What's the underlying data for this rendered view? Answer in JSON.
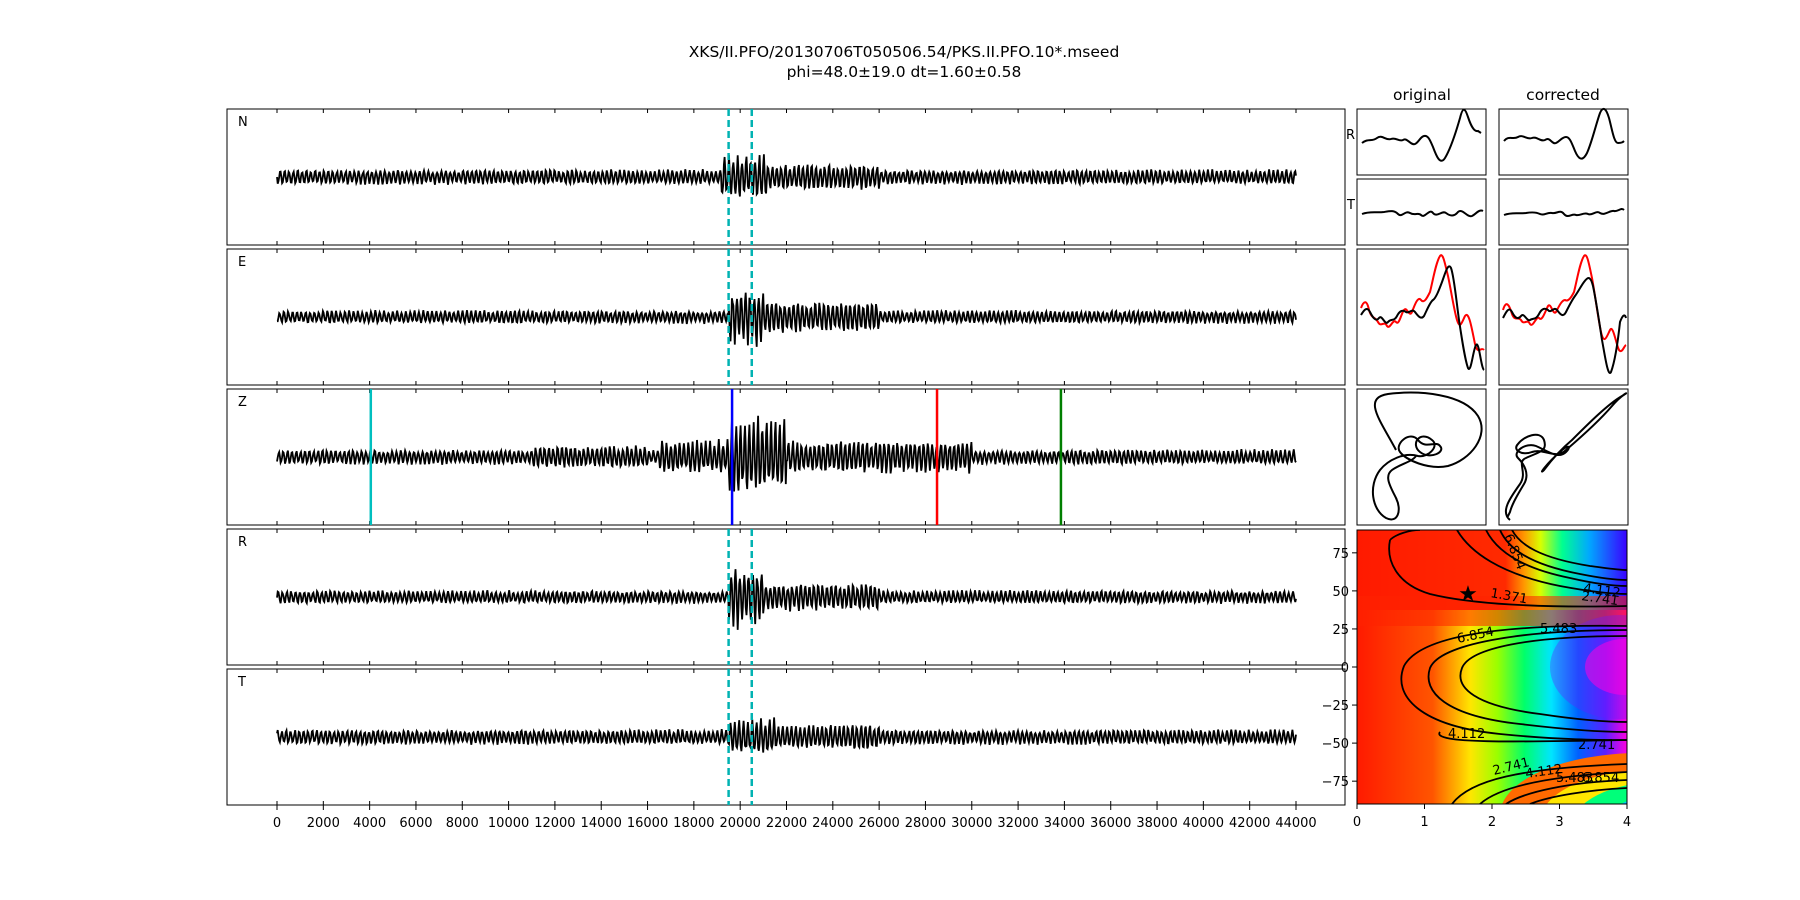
{
  "title": {
    "line1": "XKS/II.PFO/20130706T050506.54/PKS.II.PFO.10*.mseed",
    "line2": "phi=48.0±19.0 dt=1.60±0.58"
  },
  "colors": {
    "trace": "#000000",
    "window_marker": "#00b2b2",
    "pick_cyan": "#00bfbf",
    "pick_blue": "#0000ff",
    "pick_red": "#ff0000",
    "pick_green": "#007f00",
    "fast_trace": "#ff0000"
  },
  "chart_data": [
    {
      "type": "line",
      "panel": "seismograms",
      "channels": [
        "N",
        "E",
        "Z",
        "R",
        "T"
      ],
      "x_range": [
        0,
        44000
      ],
      "xticks": [
        0,
        2000,
        4000,
        6000,
        8000,
        10000,
        12000,
        14000,
        16000,
        18000,
        20000,
        22000,
        24000,
        26000,
        28000,
        30000,
        32000,
        34000,
        36000,
        38000,
        40000,
        42000,
        44000
      ],
      "window": {
        "start": 19500,
        "end": 20500,
        "channels": [
          "N",
          "E",
          "R",
          "T"
        ]
      },
      "phase_picks": [
        {
          "x": 4050,
          "color": "cyan"
        },
        {
          "x": 19650,
          "color": "blue"
        },
        {
          "x": 28500,
          "color": "red"
        },
        {
          "x": 33850,
          "color": "green"
        }
      ]
    },
    {
      "type": "line",
      "panel": "waveform-comparison",
      "column_titles": [
        "original",
        "corrected"
      ],
      "row_labels": [
        "R",
        "T"
      ],
      "particle_motion_row": true
    },
    {
      "type": "heatmap",
      "panel": "error-surface",
      "x_range": [
        0,
        4
      ],
      "y_range": [
        -90,
        90
      ],
      "xticks": [
        "0",
        "1",
        "2",
        "3",
        "4"
      ],
      "yticks": [
        "75",
        "50",
        "25",
        "0",
        "−25",
        "−50",
        "−75"
      ],
      "contour_levels": [
        "1.371",
        "2.741",
        "4.112",
        "5.483",
        "6.854"
      ],
      "best_fit": {
        "x": 1.6,
        "y": 48.0
      }
    }
  ]
}
